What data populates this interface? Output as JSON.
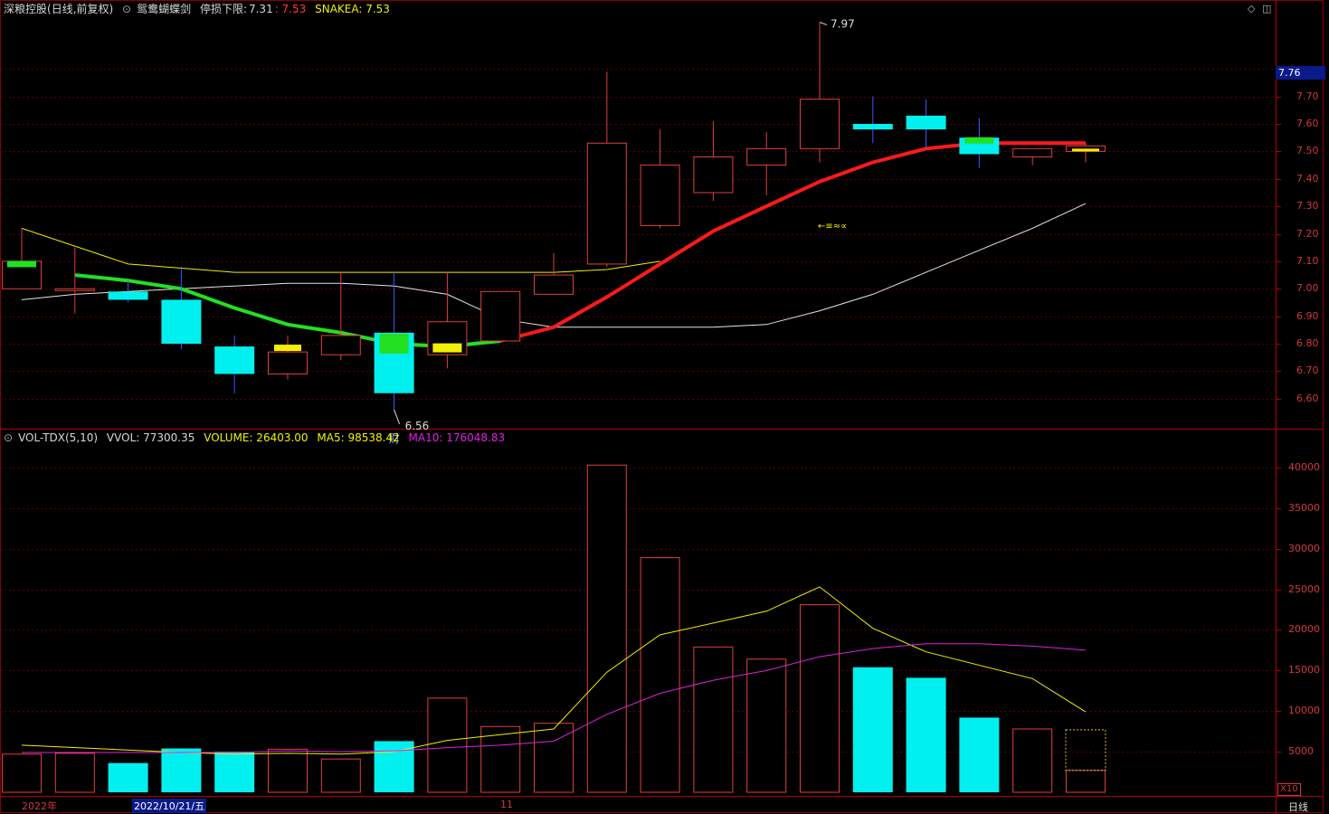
{
  "header": {
    "stock_name": "深粮控股",
    "mode": "(日线,前复权)",
    "indicator_name": "鸳鸯蝴蝶剑",
    "stoploss_label": "停损下限:",
    "stoploss_value": "7.31",
    "stoploss_value2": ": 7.53",
    "snakea_label": "SNAKEA: 7.53"
  },
  "volume_header": {
    "name": "VOL-TDX(5,10)",
    "vvol": "VVOL: 77300.35",
    "volume": "VOLUME: 26403.00",
    "ma5": "MA5: 98538.42",
    "ma10": "MA10: 176048.83"
  },
  "current_price": "7.76",
  "price_axis": [
    "7.70",
    "7.60",
    "7.50",
    "7.40",
    "7.30",
    "7.20",
    "7.10",
    "7.00",
    "6.90",
    "6.80",
    "6.70",
    "6.60"
  ],
  "volume_axis": [
    "40000",
    "35000",
    "30000",
    "25000",
    "20000",
    "15000",
    "10000",
    "5000"
  ],
  "annotations": {
    "high": "7.97",
    "low": "6.56",
    "finance_marker": "财",
    "signal_text": "←≡≈∝"
  },
  "dates": {
    "year": "2022年",
    "selected": "2022/10/21/五",
    "month": "11"
  },
  "period_label": "日线",
  "x10_label": "X10",
  "colors": {
    "up": "#e0403a",
    "down": "#00f0f0",
    "grid": "#5a0000",
    "ma_yellow": "#f0f000",
    "ma_white": "#e6e6e6",
    "snake_green": "#22e022",
    "snake_red": "#ff1a1a",
    "magenta": "#e020e0"
  },
  "chart_data": {
    "type": "candlestick",
    "ylim": [
      6.53,
      8.0
    ],
    "candles": [
      {
        "o": 7.0,
        "h": 7.22,
        "l": 7.0,
        "c": 7.1
      },
      {
        "o": 7.0,
        "h": 7.15,
        "l": 6.91,
        "c": 7.0
      },
      {
        "o": 6.99,
        "h": 7.03,
        "l": 6.95,
        "c": 6.96
      },
      {
        "o": 6.96,
        "h": 7.08,
        "l": 6.78,
        "c": 6.8
      },
      {
        "o": 6.79,
        "h": 6.83,
        "l": 6.62,
        "c": 6.69
      },
      {
        "o": 6.69,
        "h": 6.83,
        "l": 6.67,
        "c": 6.77
      },
      {
        "o": 6.76,
        "h": 7.06,
        "l": 6.74,
        "c": 6.83
      },
      {
        "o": 6.84,
        "h": 7.06,
        "l": 6.56,
        "c": 6.62
      },
      {
        "o": 6.76,
        "h": 7.06,
        "l": 6.71,
        "c": 6.88
      },
      {
        "o": 6.81,
        "h": 6.99,
        "l": 6.81,
        "c": 6.99
      },
      {
        "o": 6.98,
        "h": 7.13,
        "l": 6.98,
        "c": 7.05
      },
      {
        "o": 7.09,
        "h": 7.79,
        "l": 7.08,
        "c": 7.53
      },
      {
        "o": 7.23,
        "h": 7.58,
        "l": 7.22,
        "c": 7.45
      },
      {
        "o": 7.35,
        "h": 7.61,
        "l": 7.32,
        "c": 7.48
      },
      {
        "o": 7.45,
        "h": 7.57,
        "l": 7.34,
        "c": 7.51
      },
      {
        "o": 7.51,
        "h": 7.97,
        "l": 7.46,
        "c": 7.69
      },
      {
        "o": 7.6,
        "h": 7.7,
        "l": 7.53,
        "c": 7.58
      },
      {
        "o": 7.63,
        "h": 7.69,
        "l": 7.51,
        "c": 7.58
      },
      {
        "o": 7.55,
        "h": 7.62,
        "l": 7.44,
        "c": 7.49
      },
      {
        "o": 7.48,
        "h": 7.51,
        "l": 7.45,
        "c": 7.51
      },
      {
        "o": 7.5,
        "h": 7.53,
        "l": 7.46,
        "c": 7.52
      }
    ],
    "ma_yellow": [
      7.22,
      null,
      7.09,
      null,
      7.06,
      null,
      7.06,
      null,
      7.06,
      7.06,
      7.06,
      7.07,
      7.1
    ],
    "ma_white": [
      6.96,
      6.98,
      6.99,
      7.0,
      7.01,
      7.02,
      7.02,
      7.01,
      6.98,
      6.89,
      6.86,
      6.86,
      6.86,
      6.86,
      6.87,
      6.92,
      6.98,
      7.06,
      7.14,
      7.22,
      7.31
    ],
    "snake": [
      null,
      7.05,
      7.03,
      7.0,
      6.93,
      6.87,
      6.84,
      6.8,
      6.79,
      6.81,
      6.86,
      6.97,
      7.09,
      7.21,
      7.3,
      7.39,
      7.46,
      7.51,
      7.53,
      7.53,
      7.53
    ],
    "volume_ylim": [
      0,
      42000
    ],
    "volumes": [
      4700,
      4800,
      3600,
      5400,
      5000,
      5300,
      4100,
      6300,
      11600,
      8100,
      8500,
      40300,
      28900,
      17900,
      16400,
      23100,
      15400,
      14100,
      9200,
      7800,
      2700
    ],
    "vol_ma5": [
      5800,
      null,
      null,
      4900,
      4700,
      4800,
      4700,
      5000,
      6400,
      7100,
      7800,
      14800,
      19400,
      null,
      22300,
      25300,
      20200,
      17300,
      null,
      14000,
      9900
    ],
    "vol_ma10": [
      4900,
      null,
      null,
      4900,
      4900,
      5100,
      5000,
      5100,
      5500,
      5800,
      6300,
      9600,
      12200,
      13800,
      15000,
      16700,
      17700,
      18300,
      18300,
      18000,
      17500
    ]
  }
}
